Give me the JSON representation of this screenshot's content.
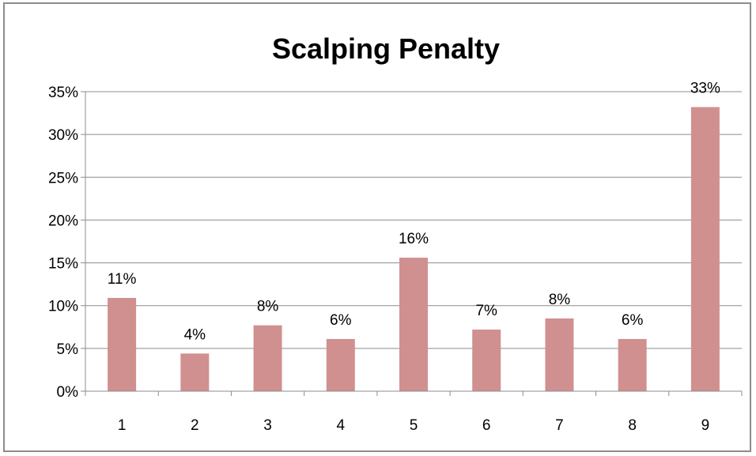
{
  "chart_data": {
    "type": "bar",
    "title": "Scalping Penalty",
    "xlabel": "",
    "ylabel": "",
    "categories": [
      "1",
      "2",
      "3",
      "4",
      "5",
      "6",
      "7",
      "8",
      "9"
    ],
    "values": [
      0.109,
      0.044,
      0.077,
      0.061,
      0.156,
      0.072,
      0.085,
      0.061,
      0.332
    ],
    "data_labels": [
      "11%",
      "4%",
      "8%",
      "6%",
      "16%",
      "7%",
      "8%",
      "6%",
      "33%"
    ],
    "ylim": [
      0,
      0.35
    ],
    "yticks": [
      0,
      0.05,
      0.1,
      0.15,
      0.2,
      0.25,
      0.3,
      0.35
    ],
    "ytick_labels": [
      "0%",
      "5%",
      "10%",
      "15%",
      "20%",
      "25%",
      "30%",
      "35%"
    ],
    "grid": true,
    "legend": "none",
    "colors": {
      "bar": "#d09090",
      "grid": "#8c8c8c",
      "frame": "#8c8c8c"
    }
  }
}
